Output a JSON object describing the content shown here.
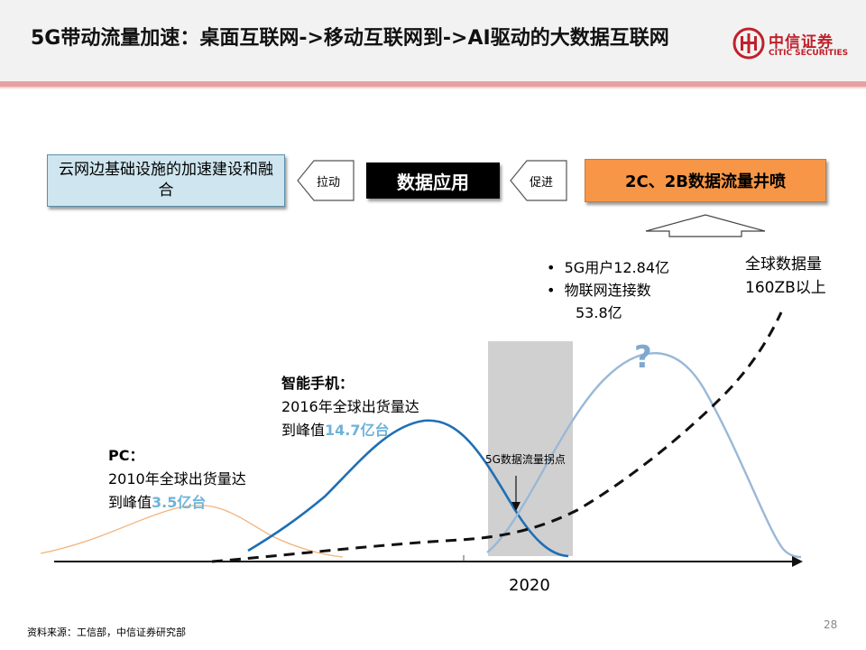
{
  "header": {
    "title": "5G带动流量加速：桌面互联网->移动互联网到->AI驱动的大数据互联网",
    "logo_cn": "中信证券",
    "logo_en": "CITIC SECURITIES"
  },
  "flow": {
    "left_box": "云网边基础设施的加速建设和融合",
    "arrow1_label": "拉动",
    "mid_box": "数据应用",
    "arrow2_label": "促进",
    "right_box": "2C、2B数据流量井喷"
  },
  "annotations": {
    "bullets": [
      "5G用户12.84亿",
      "物联网连接数",
      "53.8亿"
    ],
    "global_data_l1": "全球数据量",
    "global_data_l2": "160ZB以上",
    "phone_title": "智能手机：",
    "phone_l2": "2016年全球出货量达",
    "phone_l3_prefix": "到峰值",
    "phone_l3_value": "14.7亿台",
    "pc_title": "PC：",
    "pc_l2": "2010年全球出货量达",
    "pc_l3_prefix": "到峰值",
    "pc_l3_value": "3.5亿台",
    "inflection": "5G数据流量拐点",
    "question": "?",
    "year": "2020"
  },
  "footer": {
    "source": "资料来源：工信部，中信证券研究部",
    "page": "28"
  },
  "colors": {
    "brand_red": "#c0202a",
    "pc_curve": "#f2b37a",
    "phone_curve": "#1f6fb5",
    "future_curve": "#9ab8d6",
    "highlight": "#6fb3d8",
    "orange_box": "#f79646"
  }
}
